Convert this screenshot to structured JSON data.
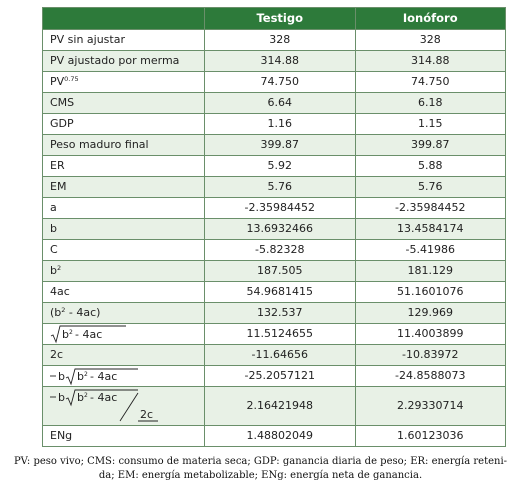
{
  "table": {
    "headers": [
      "",
      "Testigo",
      "Ionóforo"
    ],
    "rows": [
      {
        "label": "PV sin ajustar",
        "testigo": "328",
        "ionoforo": "328"
      },
      {
        "label": "PV ajustado por merma",
        "testigo": "314.88",
        "ionoforo": "314.88"
      },
      {
        "label": "PV",
        "sup": "0.75",
        "testigo": "74.750",
        "ionoforo": "74.750"
      },
      {
        "label": "CMS",
        "testigo": "6.64",
        "ionoforo": "6.18"
      },
      {
        "label": "GDP",
        "testigo": "1.16",
        "ionoforo": "1.15"
      },
      {
        "label": "Peso maduro final",
        "testigo": "399.87",
        "ionoforo": "399.87"
      },
      {
        "label": "ER",
        "testigo": "5.92",
        "ionoforo": "5.88"
      },
      {
        "label": "EM",
        "testigo": "5.76",
        "ionoforo": "5.76"
      },
      {
        "label": "a",
        "testigo": "-2.35984452",
        "ionoforo": "-2.35984452"
      },
      {
        "label": "b",
        "testigo": "13.6932466",
        "ionoforo": "13.4584174"
      },
      {
        "label": "C",
        "testigo": "-5.82328",
        "ionoforo": "-5.41986"
      },
      {
        "label": "b",
        "sup": "2",
        "testigo": "187.505",
        "ionoforo": "181.129"
      },
      {
        "label": "4ac",
        "testigo": "54.9681415",
        "ionoforo": "51.1601076"
      },
      {
        "label": "(b",
        "sup": "2",
        "label_after": " - 4ac)",
        "testigo": "132.537",
        "ionoforo": "129.969"
      },
      {
        "formula": "sqrt",
        "formula_text": "b² - 4ac",
        "testigo": "11.5124655",
        "ionoforo": "11.4003899"
      },
      {
        "label": "2c",
        "testigo": "-11.64656",
        "ionoforo": "-10.83972"
      },
      {
        "formula": "neg-b-sqrt",
        "formula_text": "- b√b² - 4ac",
        "testigo": "-25.2057121",
        "ionoforo": "-24.8588073"
      },
      {
        "formula": "fraction",
        "formula_text": "- b√b² - 4ac / 2c",
        "testigo": "2.16421948",
        "ionoforo": "2.29330714"
      },
      {
        "label": "ENg",
        "testigo": "1.48802049",
        "ionoforo": "1.60123036"
      }
    ]
  },
  "footnote": {
    "line1": "PV: peso vivo; CMS: consumo de materia seca; GDP: ganancia diaria de peso; ER: energía reteni-",
    "line2": "da; EM: energía metabolizable; ENg: energía neta de ganancia."
  },
  "colors": {
    "header_bg": "#2d7a3a",
    "stripe": "#e8f1e6",
    "border": "#6a8f6a"
  }
}
